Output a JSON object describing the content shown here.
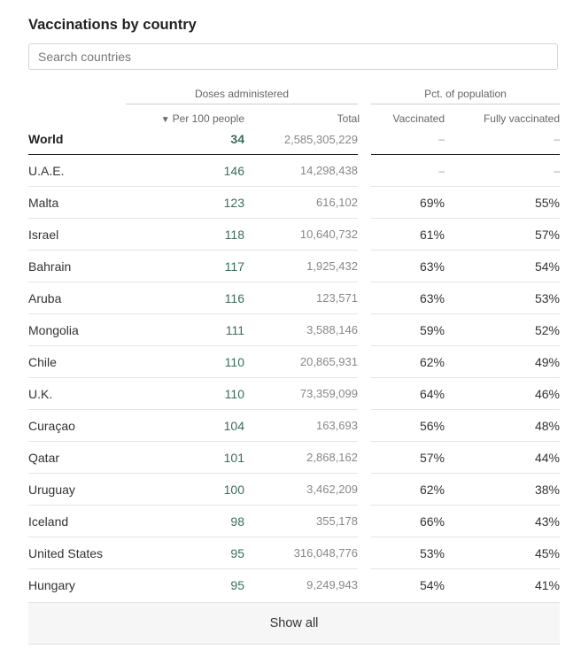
{
  "title": "Vaccinations by country",
  "search": {
    "placeholder": "Search countries",
    "value": ""
  },
  "groups": {
    "doses": "Doses administered",
    "pct": "Pct. of population"
  },
  "columns": {
    "sort_caret": "▼",
    "per100": "Per 100 people",
    "total": "Total",
    "vaccinated": "Vaccinated",
    "fully": "Fully vaccinated"
  },
  "world": {
    "name": "World",
    "per100": "34",
    "total": "2,585,305,229",
    "vaccinated": "–",
    "fully": "–"
  },
  "rows": [
    {
      "name": "U.A.E.",
      "per100": "146",
      "total": "14,298,438",
      "vaccinated": "–",
      "fully": "–"
    },
    {
      "name": "Malta",
      "per100": "123",
      "total": "616,102",
      "vaccinated": "69%",
      "fully": "55%"
    },
    {
      "name": "Israel",
      "per100": "118",
      "total": "10,640,732",
      "vaccinated": "61%",
      "fully": "57%"
    },
    {
      "name": "Bahrain",
      "per100": "117",
      "total": "1,925,432",
      "vaccinated": "63%",
      "fully": "54%"
    },
    {
      "name": "Aruba",
      "per100": "116",
      "total": "123,571",
      "vaccinated": "63%",
      "fully": "53%"
    },
    {
      "name": "Mongolia",
      "per100": "111",
      "total": "3,588,146",
      "vaccinated": "59%",
      "fully": "52%"
    },
    {
      "name": "Chile",
      "per100": "110",
      "total": "20,865,931",
      "vaccinated": "62%",
      "fully": "49%"
    },
    {
      "name": "U.K.",
      "per100": "110",
      "total": "73,359,099",
      "vaccinated": "64%",
      "fully": "46%"
    },
    {
      "name": "Curaçao",
      "per100": "104",
      "total": "163,693",
      "vaccinated": "56%",
      "fully": "48%"
    },
    {
      "name": "Qatar",
      "per100": "101",
      "total": "2,868,162",
      "vaccinated": "57%",
      "fully": "44%"
    },
    {
      "name": "Uruguay",
      "per100": "100",
      "total": "3,462,209",
      "vaccinated": "62%",
      "fully": "38%"
    },
    {
      "name": "Iceland",
      "per100": "98",
      "total": "355,178",
      "vaccinated": "66%",
      "fully": "43%"
    },
    {
      "name": "United States",
      "per100": "95",
      "total": "316,048,776",
      "vaccinated": "53%",
      "fully": "45%"
    },
    {
      "name": "Hungary",
      "per100": "95",
      "total": "9,249,943",
      "vaccinated": "54%",
      "fully": "41%"
    }
  ],
  "show_all": "Show all"
}
